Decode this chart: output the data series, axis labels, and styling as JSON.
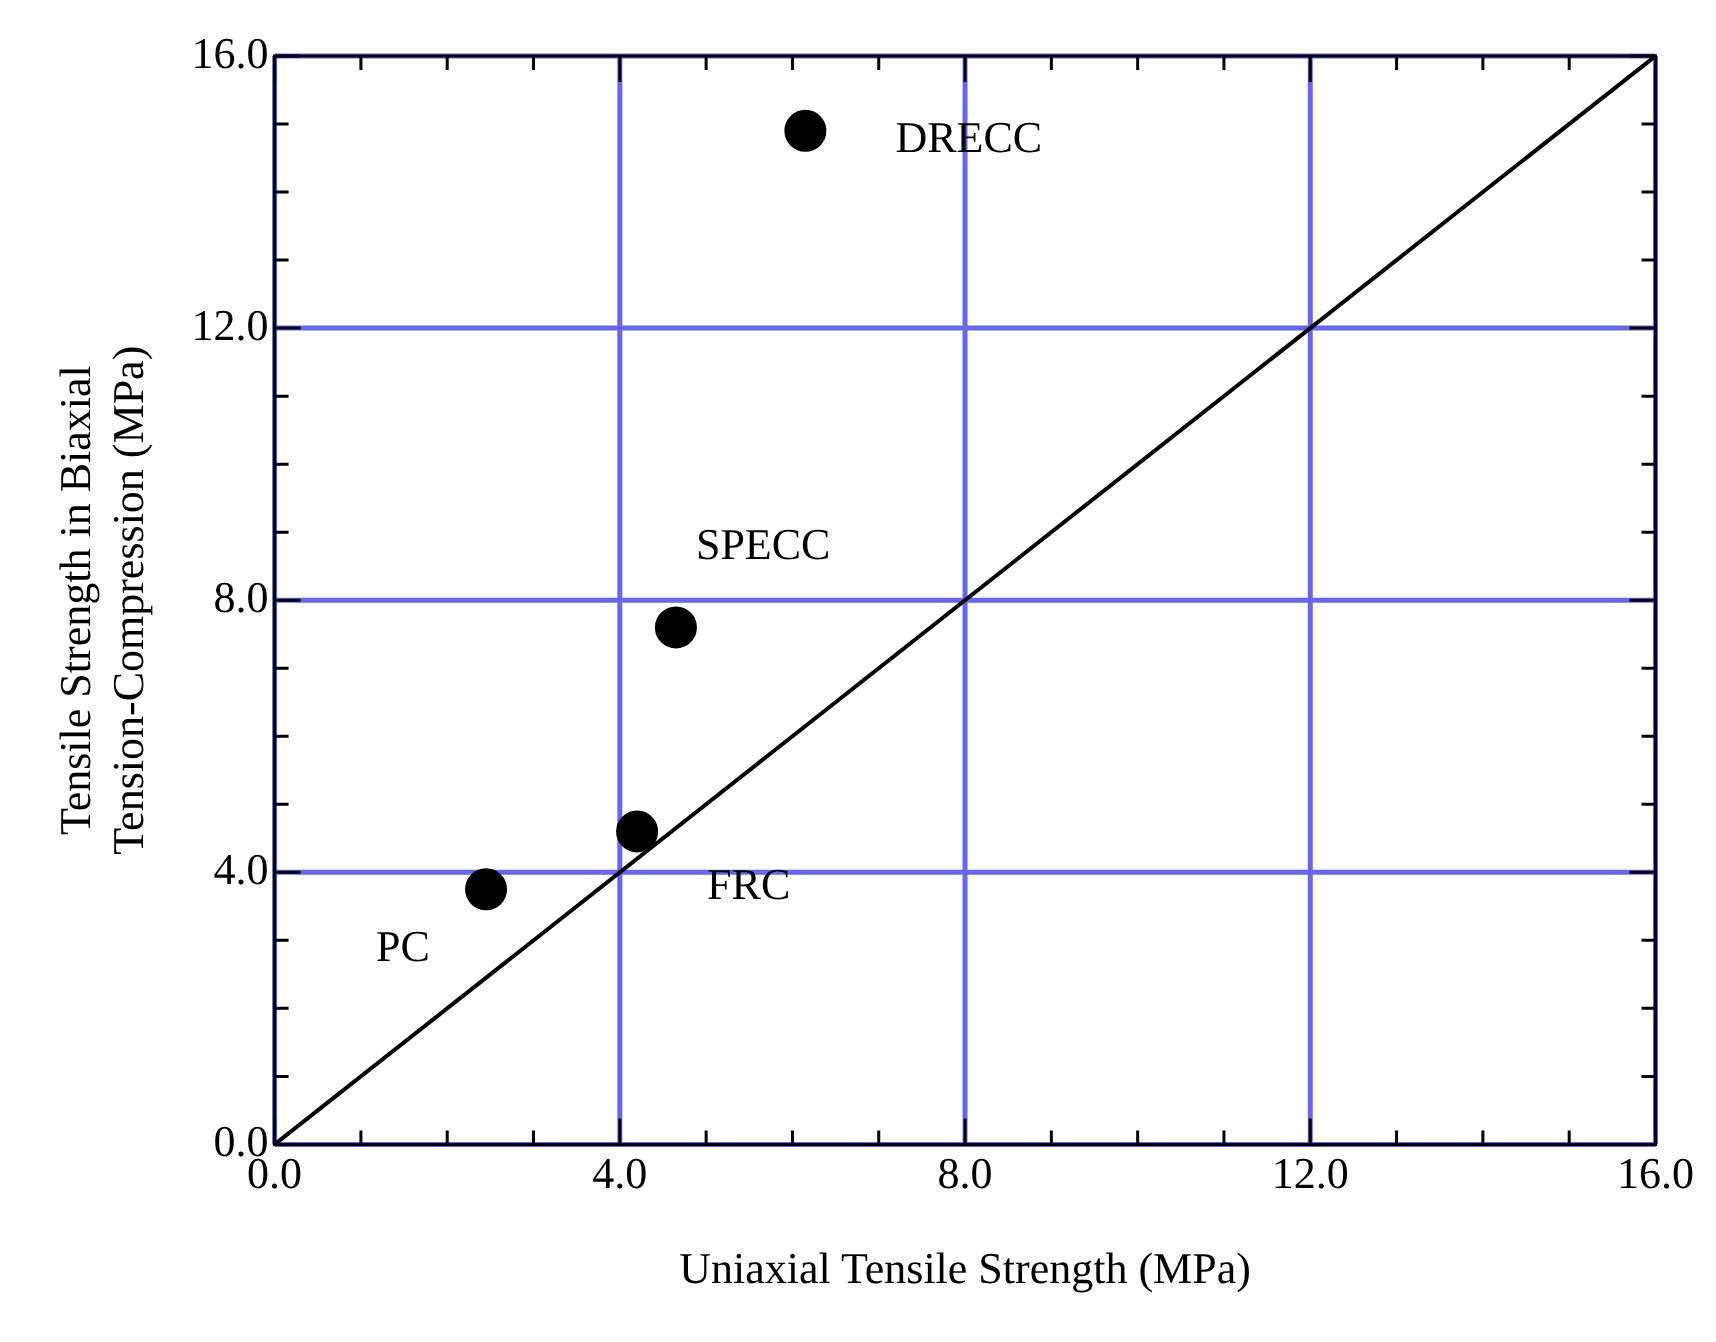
{
  "chart_data": {
    "type": "scatter",
    "xlabel": "Uniaxial Tensile Strength (MPa)",
    "ylabel": "Tensile Strength in Biaxial Tension-Compression (MPa)",
    "xlim": [
      0,
      16
    ],
    "ylim": [
      0,
      16
    ],
    "xticks": [
      {
        "value": 0,
        "label": "0.0"
      },
      {
        "value": 1,
        "label": null
      },
      {
        "value": 2,
        "label": null
      },
      {
        "value": 3,
        "label": null
      },
      {
        "value": 4,
        "label": "4.0"
      },
      {
        "value": 5,
        "label": null
      },
      {
        "value": 6,
        "label": null
      },
      {
        "value": 7,
        "label": null
      },
      {
        "value": 8,
        "label": "8.0"
      },
      {
        "value": 9,
        "label": null
      },
      {
        "value": 10,
        "label": null
      },
      {
        "value": 11,
        "label": null
      },
      {
        "value": 12,
        "label": "12.0"
      },
      {
        "value": 13,
        "label": null
      },
      {
        "value": 14,
        "label": null
      },
      {
        "value": 15,
        "label": null
      },
      {
        "value": 16,
        "label": "16.0"
      }
    ],
    "yticks": [
      {
        "value": 0,
        "label": "0.0"
      },
      {
        "value": 1,
        "label": null
      },
      {
        "value": 2,
        "label": null
      },
      {
        "value": 3,
        "label": null
      },
      {
        "value": 4,
        "label": "4.0"
      },
      {
        "value": 5,
        "label": null
      },
      {
        "value": 6,
        "label": null
      },
      {
        "value": 7,
        "label": null
      },
      {
        "value": 8,
        "label": "8.0"
      },
      {
        "value": 9,
        "label": null
      },
      {
        "value": 10,
        "label": null
      },
      {
        "value": 11,
        "label": null
      },
      {
        "value": 12,
        "label": "12.0"
      },
      {
        "value": 13,
        "label": null
      },
      {
        "value": 14,
        "label": null
      },
      {
        "value": 15,
        "label": null
      },
      {
        "value": 16,
        "label": "16.0"
      }
    ],
    "grid": true,
    "marker": "circle",
    "series": [
      {
        "color": "#000000",
        "x": [
          2.45,
          4.2,
          4.65,
          6.15
        ],
        "values": [
          3.75,
          4.6,
          7.6,
          14.9
        ]
      },
      {
        "type": "line",
        "color": "#000000",
        "x": [
          0,
          16
        ],
        "values": [
          0,
          16
        ],
        "marker": "none",
        "line_style": "solid"
      }
    ],
    "annotations": [
      {
        "text": "PC",
        "x": 2.45,
        "y": 3.75
      },
      {
        "text": "FRC",
        "x": 4.2,
        "y": 4.6
      },
      {
        "text": "SPECC",
        "x": 4.65,
        "y": 7.6
      },
      {
        "text": "DRECC",
        "x": 6.15,
        "y": 14.9
      }
    ]
  }
}
